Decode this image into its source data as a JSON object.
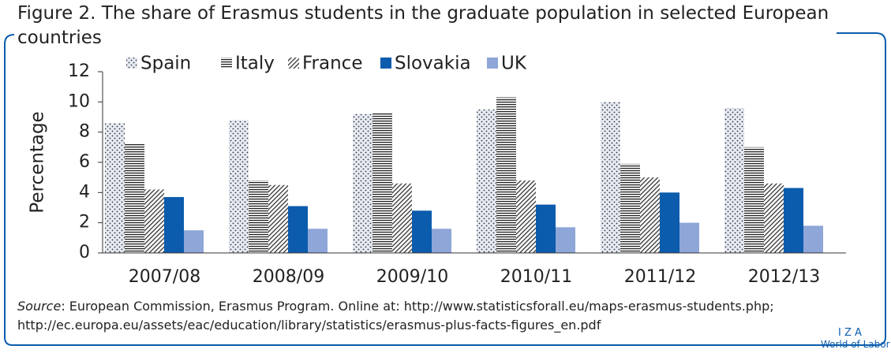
{
  "chart_data": {
    "type": "bar",
    "title_lines": [
      "Figure 2. The share of Erasmus students in the graduate population in selected European",
      "countries"
    ],
    "y_label": "Percentage",
    "categories": [
      "2007/08",
      "2008/09",
      "2009/10",
      "2010/11",
      "2011/12",
      "2012/13"
    ],
    "series": [
      {
        "name": "Spain",
        "color": "#e6eaf3",
        "pattern": "dots",
        "values": [
          8.6,
          8.8,
          9.2,
          9.5,
          10.0,
          9.6
        ]
      },
      {
        "name": "Italy",
        "color": "#ffffff",
        "pattern": "horizontal",
        "values": [
          7.2,
          4.8,
          9.3,
          10.3,
          5.9,
          7.0
        ]
      },
      {
        "name": "France",
        "color": "#ffffff",
        "pattern": "diagonal",
        "values": [
          4.2,
          4.5,
          4.6,
          4.8,
          5.0,
          4.6
        ]
      },
      {
        "name": "Slovakia",
        "color": "#0b5cad",
        "pattern": "solid",
        "values": [
          3.7,
          3.1,
          2.8,
          3.2,
          4.0,
          4.3
        ]
      },
      {
        "name": "UK",
        "color": "#8ea6d8",
        "pattern": "solid",
        "values": [
          1.5,
          1.6,
          1.6,
          1.7,
          2.0,
          1.8
        ]
      }
    ],
    "ylim": [
      0,
      12
    ],
    "yticks": [
      0,
      2,
      4,
      6,
      8,
      10,
      12
    ],
    "source": {
      "label": "Source",
      "lines": [
        ": European Commission, Erasmus Program. Online at: http://www.statisticsforall.eu/maps-erasmus-students.php;",
        "http://ec.europa.eu/assets/eac/education/library/statistics/erasmus-plus-facts-figures_en.pdf"
      ]
    },
    "logo": [
      "I Z A",
      "World of Labor"
    ]
  }
}
